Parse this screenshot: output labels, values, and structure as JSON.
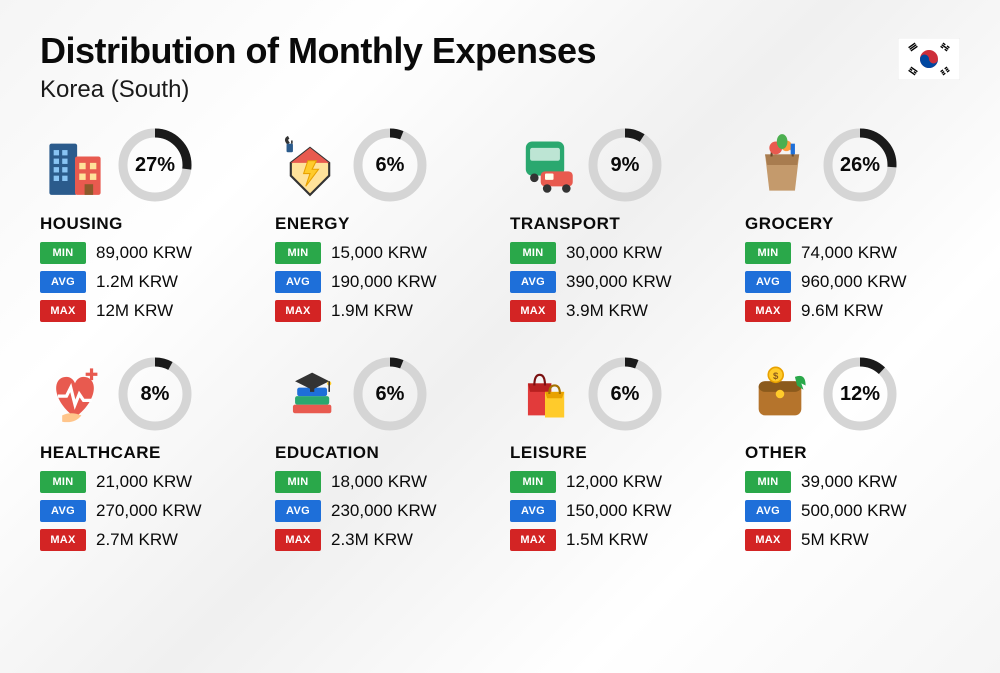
{
  "title": "Distribution of Monthly Expenses",
  "subtitle": "Korea (South)",
  "badge_labels": {
    "min": "MIN",
    "avg": "AVG",
    "max": "MAX"
  },
  "badge_colors": {
    "min": "#2aa84a",
    "avg": "#1e6fd9",
    "max": "#d32424"
  },
  "donut": {
    "bg": "#d5d5d5",
    "fg": "#1a1a1a",
    "stroke": 9,
    "radius": 32
  },
  "categories": [
    {
      "name": "HOUSING",
      "percent": 27,
      "min": "89,000 KRW",
      "avg": "1.2M KRW",
      "max": "12M KRW",
      "icon": "housing"
    },
    {
      "name": "ENERGY",
      "percent": 6,
      "min": "15,000 KRW",
      "avg": "190,000 KRW",
      "max": "1.9M KRW",
      "icon": "energy"
    },
    {
      "name": "TRANSPORT",
      "percent": 9,
      "min": "30,000 KRW",
      "avg": "390,000 KRW",
      "max": "3.9M KRW",
      "icon": "transport"
    },
    {
      "name": "GROCERY",
      "percent": 26,
      "min": "74,000 KRW",
      "avg": "960,000 KRW",
      "max": "9.6M KRW",
      "icon": "grocery"
    },
    {
      "name": "HEALTHCARE",
      "percent": 8,
      "min": "21,000 KRW",
      "avg": "270,000 KRW",
      "max": "2.7M KRW",
      "icon": "healthcare"
    },
    {
      "name": "EDUCATION",
      "percent": 6,
      "min": "18,000 KRW",
      "avg": "230,000 KRW",
      "max": "2.3M KRW",
      "icon": "education"
    },
    {
      "name": "LEISURE",
      "percent": 6,
      "min": "12,000 KRW",
      "avg": "150,000 KRW",
      "max": "1.5M KRW",
      "icon": "leisure"
    },
    {
      "name": "OTHER",
      "percent": 12,
      "min": "39,000 KRW",
      "avg": "500,000 KRW",
      "max": "5M KRW",
      "icon": "other"
    }
  ]
}
